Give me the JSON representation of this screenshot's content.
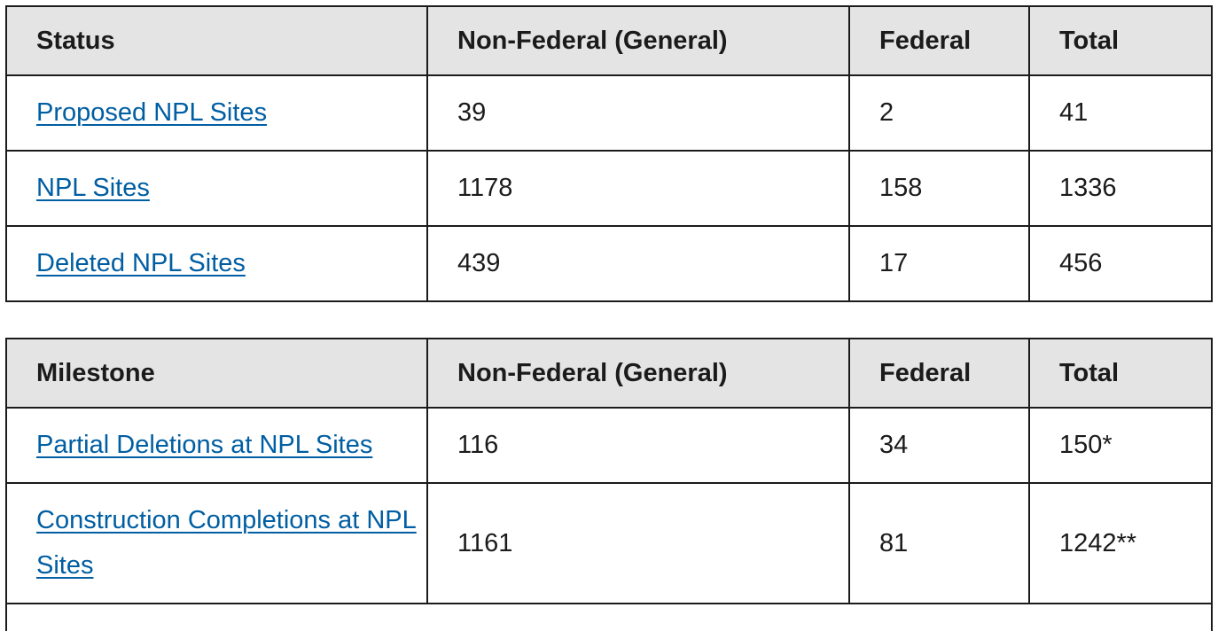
{
  "status_table": {
    "headers": [
      "Status",
      "Non-Federal (General)",
      "Federal",
      "Total"
    ],
    "rows": [
      {
        "label": "Proposed NPL Sites",
        "non_federal": "39",
        "federal": "2",
        "total": "41"
      },
      {
        "label": "NPL Sites",
        "non_federal": "1178",
        "federal": "158",
        "total": "1336"
      },
      {
        "label": "Deleted NPL Sites",
        "non_federal": "439",
        "federal": "17",
        "total": "456"
      }
    ]
  },
  "milestone_table": {
    "headers": [
      "Milestone",
      "Non-Federal (General)",
      "Federal",
      "Total"
    ],
    "rows": [
      {
        "label": "Partial Deletions at NPL Sites",
        "non_federal": "116",
        "federal": "34",
        "total": "150*"
      },
      {
        "label": "Construction Completions at NPL Sites",
        "non_federal": "1161",
        "federal": "81",
        "total": "1242**"
      }
    ]
  },
  "colors": {
    "link": "#005ea2",
    "header_bg": "#e4e4e4",
    "border": "#1b1b1b"
  }
}
